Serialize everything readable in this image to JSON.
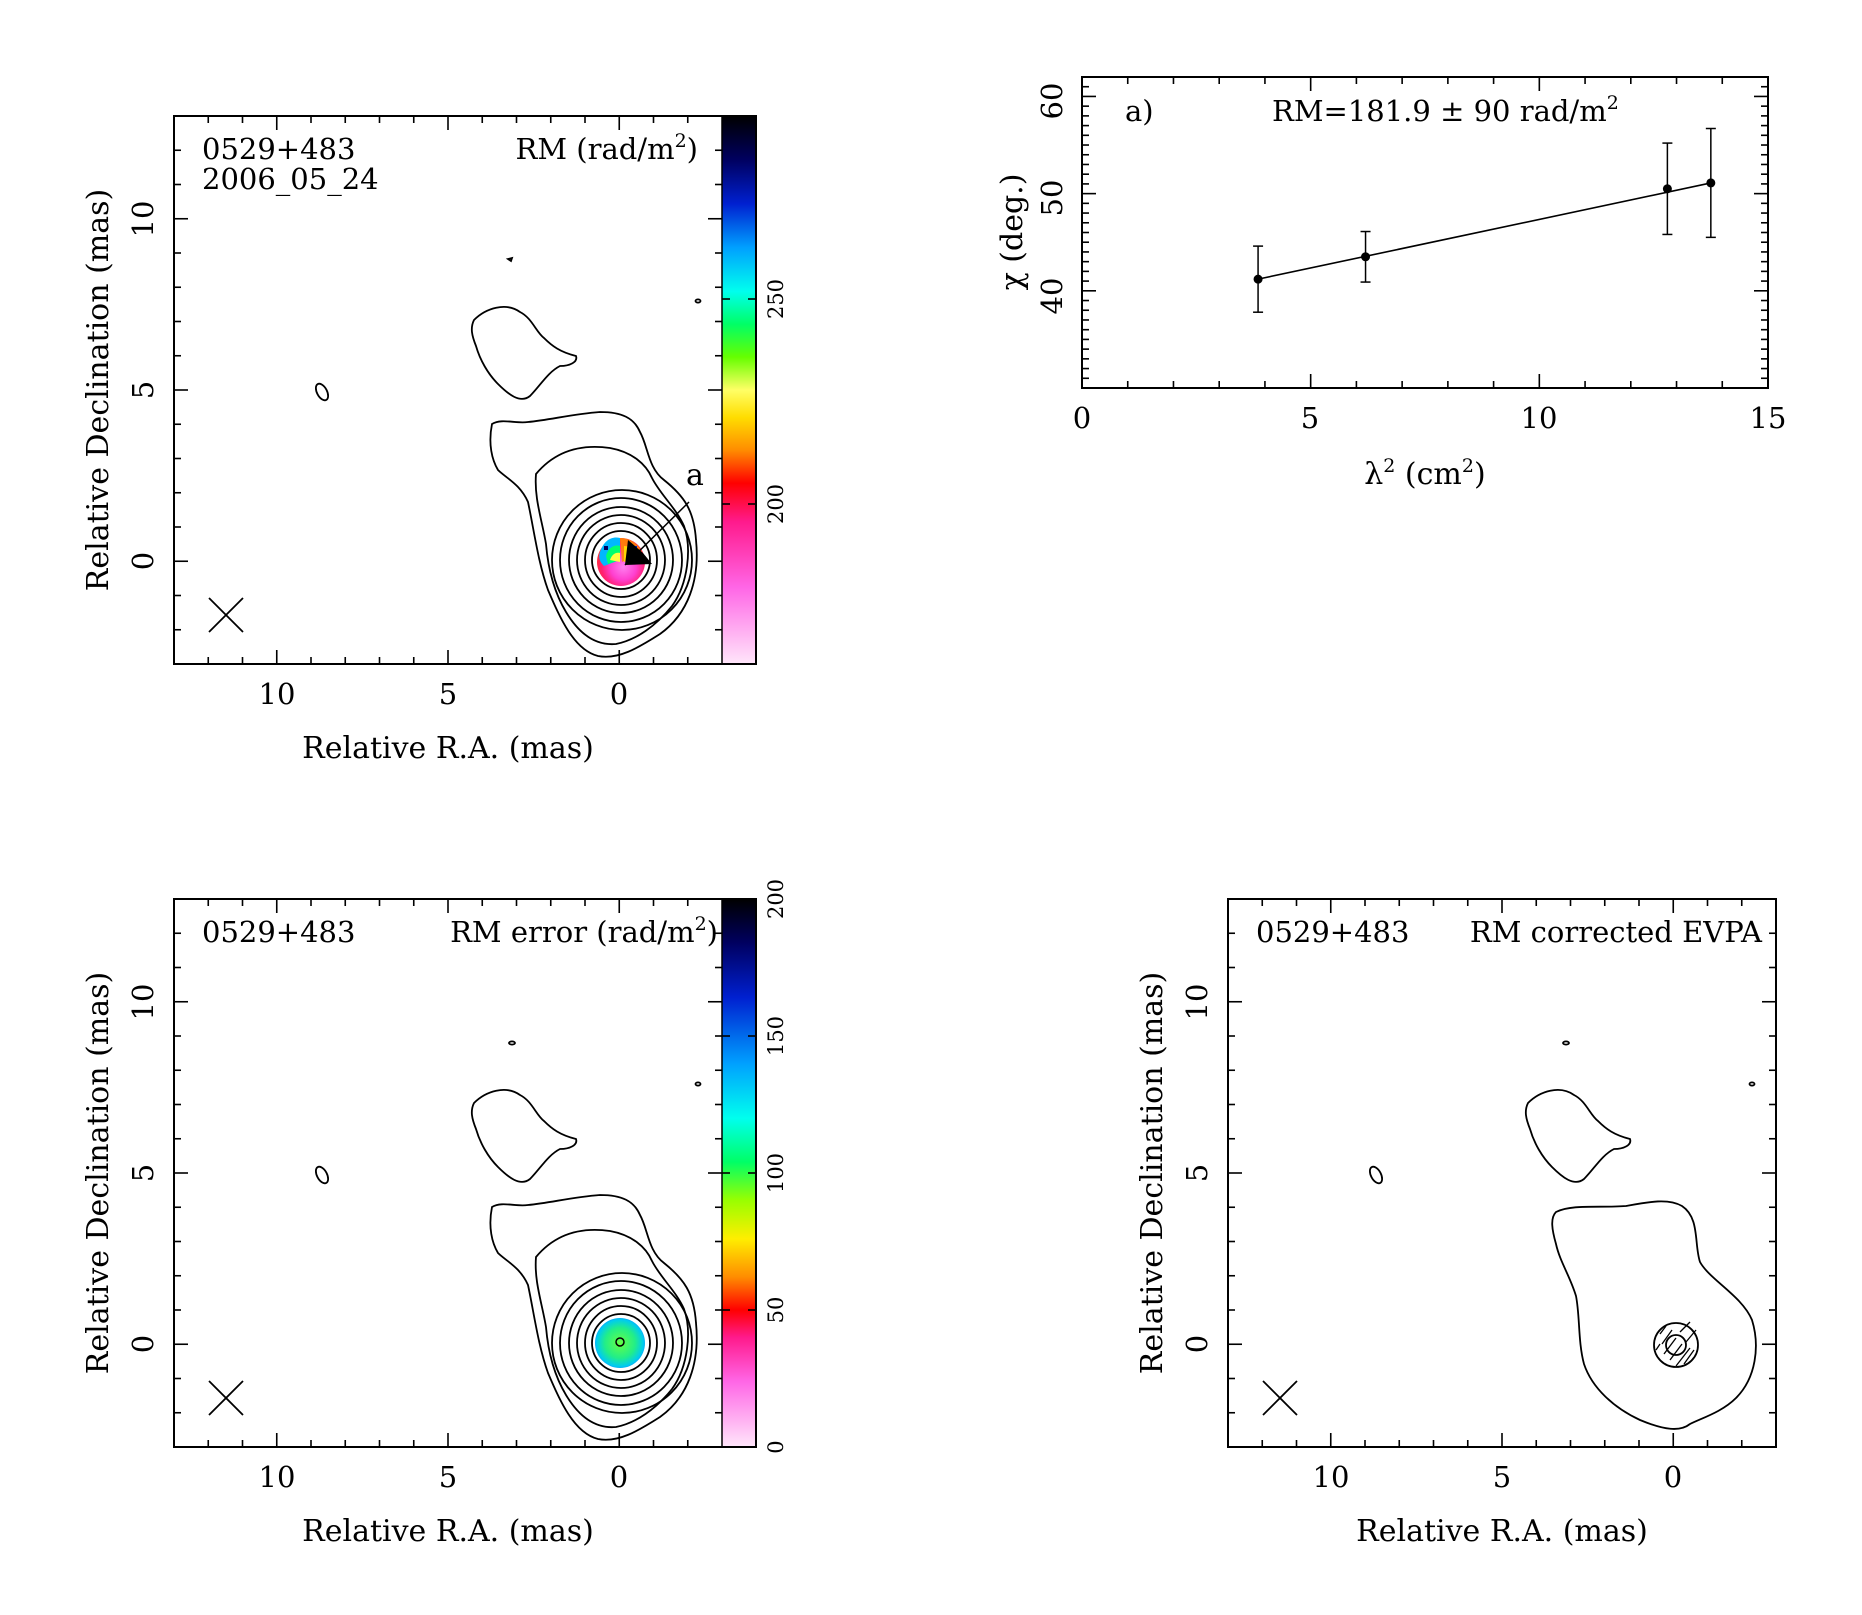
{
  "colors": {
    "rm_colormap": [
      "#ffd8f5",
      "#ff6ee8",
      "#ff1493",
      "#ff0000",
      "#ff8c00",
      "#ffd700",
      "#ffff00",
      "#7cfc00",
      "#00ff00",
      "#00e8b0",
      "#00e0ff",
      "#0090ff",
      "#0010d0",
      "#000050",
      "#000000"
    ],
    "contour": "#000000"
  },
  "chart_data": [
    {
      "type": "heatmap",
      "id": "rm_map",
      "source": "0529+483",
      "date": "2006_05_24",
      "title": "RM (rad/m",
      "title_sup": "2",
      "title_end": ")",
      "xlabel": "Relative R.A. (mas)",
      "ylabel": "Relative Declination (mas)",
      "xlim": [
        13,
        -3
      ],
      "ylim": [
        -3,
        13
      ],
      "x_ticks": [
        "10",
        "5",
        "0"
      ],
      "y_ticks": [
        "0",
        "5",
        "10"
      ],
      "colorbar": {
        "range": [
          163,
          293
        ],
        "ticks": [
          "200",
          "250"
        ]
      },
      "annotation": "a",
      "contours": true,
      "beam": "cross"
    },
    {
      "type": "line",
      "id": "rm_fit",
      "panel_label": "a)",
      "fit_label": "RM=181.9 ± 90 rad/m",
      "fit_label_sup": "2",
      "xlabel_main": "λ",
      "xlabel_sup": "2",
      "xlabel_unit": " (cm",
      "xlabel_unit_sup": "2",
      "xlabel_end": ")",
      "ylabel": "χ (deg.)",
      "xlim": [
        0,
        15
      ],
      "ylim": [
        30,
        62
      ],
      "x_ticks": [
        "0",
        "5",
        "10",
        "15"
      ],
      "y_ticks": [
        "40",
        "50",
        "60"
      ],
      "series": [
        {
          "x": [
            3.85,
            6.2,
            12.8,
            13.75
          ],
          "y": [
            41.2,
            43.5,
            50.5,
            51.1
          ],
          "yerr": [
            3.4,
            2.6,
            4.7,
            5.6
          ]
        }
      ],
      "fit_line": {
        "x": [
          3.85,
          13.75
        ],
        "y": [
          41.2,
          51.1
        ]
      }
    },
    {
      "type": "heatmap",
      "id": "rm_error_map",
      "source": "0529+483",
      "title": "RM error (rad/m",
      "title_sup": "2",
      "title_end": ")",
      "xlabel": "Relative R.A. (mas)",
      "ylabel": "Relative Declination (mas)",
      "xlim": [
        13,
        -3
      ],
      "ylim": [
        -3,
        13
      ],
      "x_ticks": [
        "10",
        "5",
        "0"
      ],
      "y_ticks": [
        "0",
        "5",
        "10"
      ],
      "colorbar": {
        "range": [
          0,
          200
        ],
        "ticks": [
          "0",
          "50",
          "100",
          "150",
          "200"
        ]
      },
      "contours": true,
      "beam": "cross"
    },
    {
      "type": "heatmap",
      "id": "evpa_map",
      "source": "0529+483",
      "title": "RM corrected EVPA",
      "xlabel": "Relative R.A. (mas)",
      "ylabel": "Relative Declination (mas)",
      "xlim": [
        13,
        -3
      ],
      "ylim": [
        -3,
        13
      ],
      "x_ticks": [
        "10",
        "5",
        "0"
      ],
      "y_ticks": [
        "0",
        "5",
        "10"
      ],
      "contours": true,
      "beam": "cross"
    }
  ]
}
